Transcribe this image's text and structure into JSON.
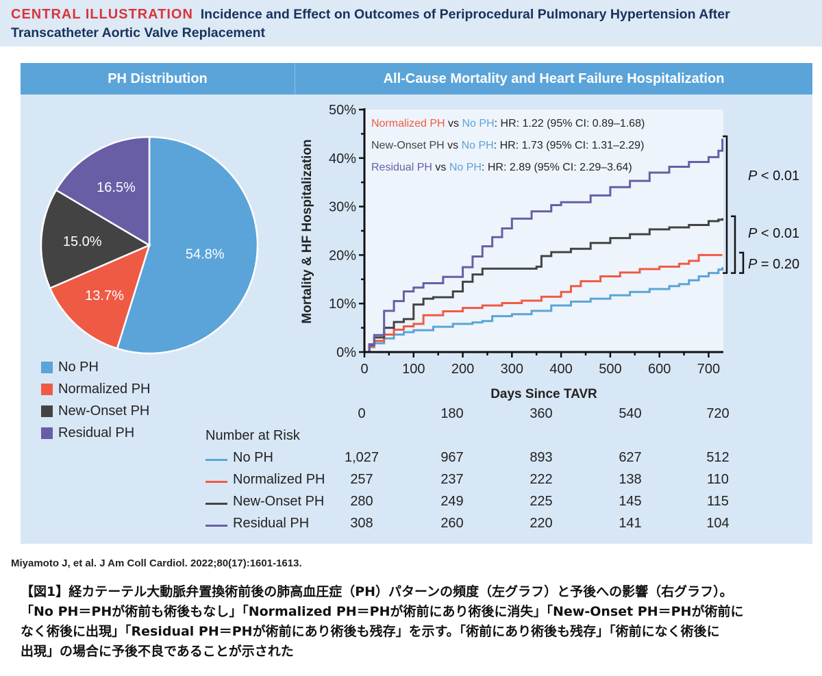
{
  "header": {
    "label": "CENTRAL ILLUSTRATION",
    "title": "Incidence and Effect on Outcomes of Periprocedural Pulmonary Hypertension After Transcatheter Aortic Valve Replacement"
  },
  "colors": {
    "no_ph": "#5aa4d9",
    "normalized_ph": "#ef5a45",
    "new_onset_ph": "#434344",
    "residual_ph": "#675ea6",
    "panel_bg": "#d8e7f5",
    "header_bg": "#5aa4d9",
    "title_red": "#d9343c",
    "title_navy": "#17325c"
  },
  "left_panel": {
    "title": "PH Distribution"
  },
  "right_panel": {
    "title": "All-Cause Mortality and Heart Failure Hospitalization"
  },
  "chart_data": [
    {
      "type": "pie",
      "title": "PH Distribution",
      "slices": [
        {
          "label": "No PH",
          "value": 54.8,
          "display": "54.8%"
        },
        {
          "label": "Normalized PH",
          "value": 13.7,
          "display": "13.7%"
        },
        {
          "label": "New-Onset PH",
          "value": 15.0,
          "display": "15.0%"
        },
        {
          "label": "Residual PH",
          "value": 16.5,
          "display": "16.5%"
        }
      ],
      "legend": [
        "No PH",
        "Normalized PH",
        "New-Onset PH",
        "Residual PH"
      ],
      "legend_position": "bottom-left"
    },
    {
      "type": "line",
      "title": "All-Cause Mortality and Heart Failure Hospitalization",
      "xlabel": "Days Since TAVR",
      "ylabel": "Mortality & HF Hospitalization",
      "xlim": [
        0,
        730
      ],
      "ylim": [
        0,
        50
      ],
      "xticks": [
        0,
        100,
        200,
        300,
        400,
        500,
        600,
        700
      ],
      "xtick_labels": [
        "0",
        "100",
        "200",
        "300",
        "400",
        "500",
        "600",
        "700"
      ],
      "yticks": [
        0,
        10,
        20,
        30,
        40,
        50
      ],
      "ytick_labels": [
        "0%",
        "10%",
        "20%",
        "30%",
        "40%",
        "50%"
      ],
      "step": true,
      "series": [
        {
          "name": "No PH",
          "x": [
            0,
            10,
            20,
            40,
            60,
            80,
            100,
            140,
            180,
            220,
            240,
            260,
            300,
            340,
            380,
            420,
            460,
            500,
            540,
            580,
            620,
            640,
            660,
            680,
            700,
            720,
            728
          ],
          "y": [
            0,
            1.0,
            1.8,
            2.8,
            3.6,
            4.1,
            4.5,
            5.2,
            5.8,
            6.1,
            6.4,
            7.4,
            7.8,
            8.5,
            9.6,
            10.4,
            11.0,
            11.7,
            12.4,
            13.0,
            13.6,
            14.0,
            14.8,
            15.6,
            16.3,
            17.0,
            17.5
          ]
        },
        {
          "name": "Normalized PH",
          "x": [
            0,
            10,
            20,
            40,
            60,
            80,
            100,
            120,
            160,
            200,
            240,
            280,
            320,
            360,
            400,
            420,
            440,
            480,
            520,
            560,
            600,
            640,
            660,
            680,
            728
          ],
          "y": [
            0,
            1.2,
            2.3,
            3.6,
            4.6,
            5.3,
            5.8,
            7.6,
            8.4,
            9.1,
            9.6,
            10.1,
            10.6,
            11.4,
            12.4,
            13.6,
            14.6,
            15.6,
            16.4,
            17.1,
            17.6,
            18.2,
            18.8,
            20.0,
            20.0
          ]
        },
        {
          "name": "New-Onset PH",
          "x": [
            0,
            10,
            20,
            40,
            60,
            80,
            100,
            120,
            140,
            180,
            200,
            220,
            240,
            260,
            350,
            360,
            380,
            420,
            460,
            500,
            540,
            580,
            620,
            660,
            700,
            720,
            728
          ],
          "y": [
            0,
            1.5,
            3.0,
            5.0,
            6.2,
            6.8,
            9.8,
            11.0,
            11.3,
            12.5,
            14.5,
            16.0,
            17.2,
            17.2,
            17.6,
            19.8,
            20.6,
            21.3,
            22.5,
            23.5,
            24.3,
            25.3,
            25.7,
            26.2,
            27.0,
            27.3,
            27.6
          ]
        },
        {
          "name": "Residual PH",
          "x": [
            0,
            10,
            20,
            40,
            60,
            80,
            100,
            120,
            160,
            200,
            220,
            240,
            260,
            280,
            300,
            340,
            380,
            400,
            460,
            500,
            540,
            580,
            620,
            660,
            700,
            720,
            728
          ],
          "y": [
            0,
            1.6,
            3.5,
            8.5,
            10.5,
            12.5,
            13.3,
            14.2,
            15.5,
            17.5,
            19.7,
            21.8,
            23.7,
            25.5,
            27.5,
            29.0,
            30.3,
            30.9,
            32.3,
            34.0,
            35.3,
            37.0,
            38.2,
            39.2,
            40.2,
            41.5,
            44.0
          ]
        }
      ],
      "annotations": {
        "hr_lines": [
          {
            "group": "Normalized PH",
            "vs": "vs",
            "ref": "No PH",
            "stat": ": HR: 1.22 (95% CI: 0.89–1.68)"
          },
          {
            "group": "New-Onset PH",
            "vs": "vs",
            "ref": "No PH",
            "stat": ": HR: 1.73 (95% CI: 1.31–2.29)"
          },
          {
            "group": "Residual PH",
            "vs": "vs",
            "ref": "No PH",
            "stat": ": HR: 2.89 (95% CI: 2.29–3.64)"
          }
        ],
        "p_values": [
          {
            "compare": "Residual PH vs No PH",
            "label": "P",
            "text": " < 0.01"
          },
          {
            "compare": "New-Onset PH vs No PH",
            "label": "P",
            "text": " < 0.01"
          },
          {
            "compare": "Normalized PH vs No PH",
            "label": "P",
            "text": " = 0.20"
          }
        ]
      },
      "number_at_risk": {
        "title": "Number at Risk",
        "timepoints": [
          "0",
          "180",
          "360",
          "540",
          "720"
        ],
        "rows": [
          {
            "name": "No PH",
            "values": [
              "1,027",
              "967",
              "893",
              "627",
              "512"
            ]
          },
          {
            "name": "Normalized PH",
            "values": [
              "257",
              "237",
              "222",
              "138",
              "110"
            ]
          },
          {
            "name": "New-Onset PH",
            "values": [
              "280",
              "249",
              "225",
              "145",
              "115"
            ]
          },
          {
            "name": "Residual PH",
            "values": [
              "308",
              "260",
              "220",
              "141",
              "104"
            ]
          }
        ]
      }
    }
  ],
  "citation": "Miyamoto J, et al. J Am Coll Cardiol. 2022;80(17):1601-1613.",
  "caption_jp": [
    "【図1】経カテーテル大動脈弁置換術前後の肺高血圧症（PH）パターンの頻度（左グラフ）と予後への影響（右グラフ）。",
    "「No PH＝PHが術前も術後もなし」「Normalized PH＝PHが術前にあり術後に消失」「New-Onset PH＝PHが術前に",
    "なく術後に出現」「Residual PH＝PHが術前にあり術後も残存」を示す。「術前にあり術後も残存」「術前になく術後に",
    "出現」の場合に予後不良であることが示された"
  ]
}
